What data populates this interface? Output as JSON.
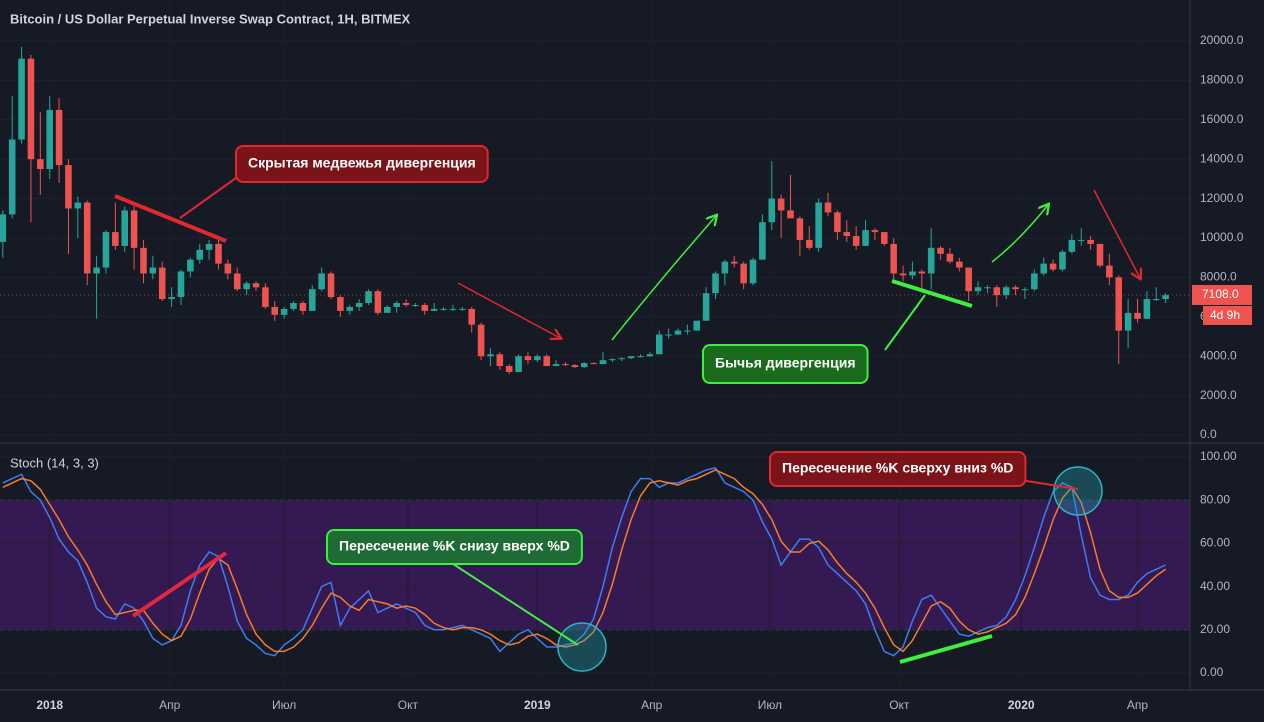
{
  "chart_data": [
    {
      "type": "candlestick",
      "title": "Bitcoin / US Dollar Perpetual Inverse Swap Contract, 1H, BITMEX",
      "up_color": "#26a69a",
      "down_color": "#ef5350",
      "xlim": [
        -0.3,
        126.6
      ],
      "ylim": [
        -406,
        22081
      ],
      "yticks": [
        {
          "value": 0,
          "label": "0.0"
        },
        {
          "value": 2000,
          "label": "2000.0"
        },
        {
          "value": 4000,
          "label": "4000.0"
        },
        {
          "value": 6000,
          "label": "6000.0"
        },
        {
          "value": 8000,
          "label": "8000.0"
        },
        {
          "value": 10000,
          "label": "10000.0"
        },
        {
          "value": 12000,
          "label": "12000.0"
        },
        {
          "value": 14000,
          "label": "14000.0"
        },
        {
          "value": 16000,
          "label": "16000.0"
        },
        {
          "value": 18000,
          "label": "18000.0"
        },
        {
          "value": 20000,
          "label": "20000.0"
        }
      ],
      "last_price": {
        "value": 7108,
        "label": "7108.0",
        "color": "#ef5350"
      },
      "countdown": "4d 9h",
      "candles": [
        [
          9800,
          11400,
          9000,
          11200
        ],
        [
          11200,
          17200,
          11000,
          15000
        ],
        [
          15000,
          19700,
          14800,
          19100
        ],
        [
          19100,
          19300,
          10800,
          14000
        ],
        [
          14000,
          16400,
          12200,
          13500
        ],
        [
          13500,
          17200,
          13000,
          16500
        ],
        [
          16500,
          17100,
          12800,
          13700
        ],
        [
          13700,
          14000,
          9200,
          11500
        ],
        [
          11500,
          12100,
          10000,
          11800
        ],
        [
          11800,
          11900,
          7600,
          8200
        ],
        [
          8200,
          9100,
          5900,
          8500
        ],
        [
          8500,
          10400,
          8200,
          10300
        ],
        [
          10300,
          11800,
          9400,
          9600
        ],
        [
          9600,
          11600,
          9300,
          11400
        ],
        [
          11400,
          11700,
          8400,
          9500
        ],
        [
          9500,
          9900,
          7700,
          8200
        ],
        [
          8200,
          9100,
          7900,
          8500
        ],
        [
          8500,
          8800,
          6800,
          6900
        ],
        [
          6900,
          7500,
          6500,
          7000
        ],
        [
          7000,
          8400,
          6600,
          8300
        ],
        [
          8300,
          9000,
          8000,
          8900
        ],
        [
          8900,
          9700,
          8700,
          9400
        ],
        [
          9400,
          9900,
          8900,
          9700
        ],
        [
          9700,
          9900,
          8400,
          8700
        ],
        [
          8700,
          8900,
          7900,
          8200
        ],
        [
          8200,
          8500,
          7300,
          7400
        ],
        [
          7400,
          7800,
          7100,
          7700
        ],
        [
          7700,
          7800,
          7300,
          7500
        ],
        [
          7500,
          7700,
          6400,
          6500
        ],
        [
          6500,
          6800,
          5800,
          6100
        ],
        [
          6100,
          6500,
          5900,
          6400
        ],
        [
          6400,
          6800,
          6300,
          6700
        ],
        [
          6700,
          6800,
          6100,
          6300
        ],
        [
          6300,
          7600,
          6300,
          7400
        ],
        [
          7400,
          8500,
          7300,
          8200
        ],
        [
          8200,
          8300,
          6900,
          7000
        ],
        [
          7000,
          7100,
          6000,
          6300
        ],
        [
          6300,
          6600,
          6100,
          6500
        ],
        [
          6500,
          6900,
          6300,
          6700
        ],
        [
          6700,
          7400,
          6600,
          7300
        ],
        [
          7300,
          7400,
          6100,
          6200
        ],
        [
          6200,
          6600,
          6200,
          6500
        ],
        [
          6500,
          6800,
          6200,
          6700
        ],
        [
          6700,
          6900,
          6500,
          6600
        ],
        [
          6600,
          6700,
          6500,
          6600
        ],
        [
          6600,
          6700,
          6100,
          6300
        ],
        [
          6300,
          6700,
          6300,
          6400
        ],
        [
          6400,
          6500,
          6300,
          6400
        ],
        [
          6400,
          6600,
          6300,
          6400
        ],
        [
          6400,
          6500,
          6300,
          6400
        ],
        [
          6400,
          6500,
          5200,
          5600
        ],
        [
          5600,
          5700,
          3800,
          4000
        ],
        [
          4000,
          4400,
          3500,
          4100
        ],
        [
          4100,
          4200,
          3300,
          3500
        ],
        [
          3500,
          3600,
          3100,
          3200
        ],
        [
          3200,
          4100,
          3200,
          4000
        ],
        [
          4000,
          4200,
          3600,
          3800
        ],
        [
          3800,
          4100,
          3700,
          4000
        ],
        [
          4000,
          4100,
          3500,
          3500
        ],
        [
          3500,
          3800,
          3500,
          3600
        ],
        [
          3600,
          3700,
          3500,
          3550
        ],
        [
          3550,
          3600,
          3400,
          3450
        ],
        [
          3450,
          3700,
          3400,
          3650
        ],
        [
          3650,
          3700,
          3600,
          3600
        ],
        [
          3600,
          4200,
          3600,
          3800
        ],
        [
          3800,
          3900,
          3700,
          3850
        ],
        [
          3850,
          3950,
          3750,
          3900
        ],
        [
          3900,
          4000,
          3850,
          4000
        ],
        [
          4000,
          4100,
          3950,
          4000
        ],
        [
          4000,
          4200,
          3950,
          4100
        ],
        [
          4100,
          5300,
          4100,
          5100
        ],
        [
          5100,
          5400,
          4900,
          5100
        ],
        [
          5100,
          5400,
          5100,
          5300
        ],
        [
          5300,
          5600,
          5100,
          5300
        ],
        [
          5300,
          5800,
          5300,
          5800
        ],
        [
          5800,
          7500,
          5800,
          7200
        ],
        [
          7200,
          8300,
          6900,
          8200
        ],
        [
          8200,
          8900,
          7600,
          8800
        ],
        [
          8800,
          9100,
          8500,
          8700
        ],
        [
          8700,
          8800,
          7400,
          7700
        ],
        [
          7700,
          9000,
          7600,
          8900
        ],
        [
          8900,
          11200,
          8900,
          10800
        ],
        [
          10800,
          13900,
          10400,
          12000
        ],
        [
          12000,
          12200,
          10000,
          11400
        ],
        [
          11400,
          13200,
          11000,
          11000
        ],
        [
          11000,
          11100,
          9100,
          9900
        ],
        [
          9900,
          10600,
          9400,
          9500
        ],
        [
          9500,
          12000,
          9300,
          11800
        ],
        [
          11800,
          12300,
          11100,
          11300
        ],
        [
          11300,
          11400,
          9900,
          10300
        ],
        [
          10300,
          10900,
          9800,
          10100
        ],
        [
          10100,
          10600,
          9400,
          9600
        ],
        [
          9600,
          10900,
          9600,
          10400
        ],
        [
          10400,
          10500,
          9900,
          10300
        ],
        [
          10300,
          10300,
          9600,
          9700
        ],
        [
          9700,
          10000,
          7800,
          8200
        ],
        [
          8200,
          8600,
          7800,
          8100
        ],
        [
          8100,
          8800,
          7900,
          8300
        ],
        [
          8300,
          8400,
          7300,
          8200
        ],
        [
          8200,
          10500,
          7400,
          9500
        ],
        [
          9500,
          9600,
          8900,
          9200
        ],
        [
          9200,
          9500,
          8700,
          8800
        ],
        [
          8800,
          9000,
          8300,
          8500
        ],
        [
          8500,
          8500,
          6800,
          7300
        ],
        [
          7300,
          7800,
          7100,
          7500
        ],
        [
          7500,
          7600,
          7200,
          7500
        ],
        [
          7500,
          7600,
          6500,
          7100
        ],
        [
          7100,
          7600,
          6900,
          7500
        ],
        [
          7500,
          7600,
          7100,
          7400
        ],
        [
          7400,
          7500,
          6900,
          7400
        ],
        [
          7400,
          8400,
          7300,
          8200
        ],
        [
          8200,
          9000,
          8100,
          8700
        ],
        [
          8700,
          8900,
          8300,
          8400
        ],
        [
          8400,
          9400,
          8300,
          9300
        ],
        [
          9300,
          10200,
          9200,
          9900
        ],
        [
          9900,
          10500,
          9600,
          9900
        ],
        [
          9900,
          10100,
          9400,
          9700
        ],
        [
          9700,
          9700,
          8500,
          8600
        ],
        [
          8600,
          9200,
          7600,
          8000
        ],
        [
          8000,
          8100,
          3600,
          5300
        ],
        [
          5300,
          6900,
          4400,
          6200
        ],
        [
          6200,
          6900,
          5700,
          5900
        ],
        [
          5900,
          7300,
          5900,
          6900
        ],
        [
          6900,
          7500,
          6800,
          6900
        ],
        [
          6900,
          7200,
          6700,
          7100
        ]
      ],
      "annotations": [
        {
          "text": "Скрытая медвежья дивергенция",
          "color": "#7a1419"
        },
        {
          "text": "Бычья дивергенция",
          "color": "#1a6b1e"
        }
      ]
    },
    {
      "type": "line",
      "title": "Stoch (14, 3, 3)",
      "xlim": [
        -0.3,
        126.6
      ],
      "ylim": [
        -7.9,
        106.5
      ],
      "xticks": [
        {
          "value": 5,
          "label": "2018"
        },
        {
          "value": 17.8,
          "label": "Апр"
        },
        {
          "value": 30,
          "label": "Июл"
        },
        {
          "value": 43.2,
          "label": "Окт"
        },
        {
          "value": 57,
          "label": "2019"
        },
        {
          "value": 69.2,
          "label": "Апр"
        },
        {
          "value": 81.8,
          "label": "Июл"
        },
        {
          "value": 95.6,
          "label": "Окт"
        },
        {
          "value": 108.6,
          "label": "2020"
        },
        {
          "value": 121,
          "label": "Апр"
        }
      ],
      "yticks": [
        {
          "value": 0,
          "label": "0.00"
        },
        {
          "value": 20,
          "label": "20.00"
        },
        {
          "value": 40,
          "label": "40.00"
        },
        {
          "value": 60,
          "label": "60.00"
        },
        {
          "value": 80,
          "label": "80.00"
        },
        {
          "value": 100,
          "label": "100.00"
        }
      ],
      "band": [
        20,
        80
      ],
      "band_color": "#3b1a5c",
      "series": [
        {
          "color": "#3d7cf0",
          "values": [
            88,
            90,
            92,
            84,
            80,
            72,
            62,
            56,
            52,
            42,
            30,
            26,
            25,
            32,
            30,
            24,
            16,
            13,
            15,
            22,
            38,
            50,
            56,
            54,
            40,
            24,
            16,
            13,
            9,
            8,
            13,
            16,
            20,
            30,
            40,
            42,
            22,
            30,
            34,
            38,
            28,
            30,
            32,
            30,
            28,
            22,
            20,
            20,
            21,
            22,
            20,
            18,
            16,
            10,
            14,
            18,
            20,
            16,
            12,
            12,
            13,
            14,
            18,
            25,
            40,
            58,
            72,
            84,
            90,
            90,
            86,
            88,
            88,
            90,
            92,
            94,
            95,
            88,
            86,
            84,
            80,
            70,
            62,
            50,
            56,
            62,
            62,
            58,
            50,
            46,
            42,
            38,
            32,
            20,
            10,
            8,
            12,
            24,
            34,
            36,
            30,
            24,
            18,
            17,
            19,
            21,
            22,
            26,
            34,
            45,
            58,
            72,
            84,
            88,
            86,
            64,
            44,
            36,
            34,
            34,
            36,
            42,
            46,
            48,
            50
          ]
        },
        {
          "color": "#f57c2a",
          "values": [
            86,
            88,
            90,
            89,
            85,
            78,
            71,
            63,
            57,
            50,
            41,
            33,
            27,
            28,
            29,
            29,
            23,
            18,
            15,
            17,
            25,
            37,
            48,
            53,
            50,
            39,
            27,
            18,
            13,
            10,
            10,
            12,
            16,
            22,
            30,
            37,
            35,
            31,
            29,
            34,
            33,
            32,
            30,
            31,
            30,
            27,
            23,
            21,
            20,
            21,
            21,
            20,
            18,
            15,
            13,
            14,
            17,
            18,
            16,
            13,
            12,
            13,
            15,
            19,
            28,
            41,
            57,
            71,
            82,
            88,
            89,
            88,
            87,
            89,
            90,
            92,
            94,
            92,
            90,
            86,
            83,
            78,
            71,
            61,
            56,
            56,
            60,
            61,
            57,
            51,
            46,
            42,
            37,
            30,
            21,
            13,
            10,
            15,
            23,
            31,
            33,
            30,
            24,
            20,
            18,
            19,
            21,
            23,
            27,
            35,
            46,
            58,
            71,
            81,
            86,
            79,
            65,
            48,
            38,
            35,
            35,
            37,
            41,
            45,
            48
          ]
        }
      ],
      "annotations": [
        {
          "text": "Пересечение %K снизу вверх %D",
          "color": "#1f6b35"
        },
        {
          "text": "Пересечение %K сверху вниз %D",
          "color": "#7a1419"
        }
      ]
    }
  ]
}
